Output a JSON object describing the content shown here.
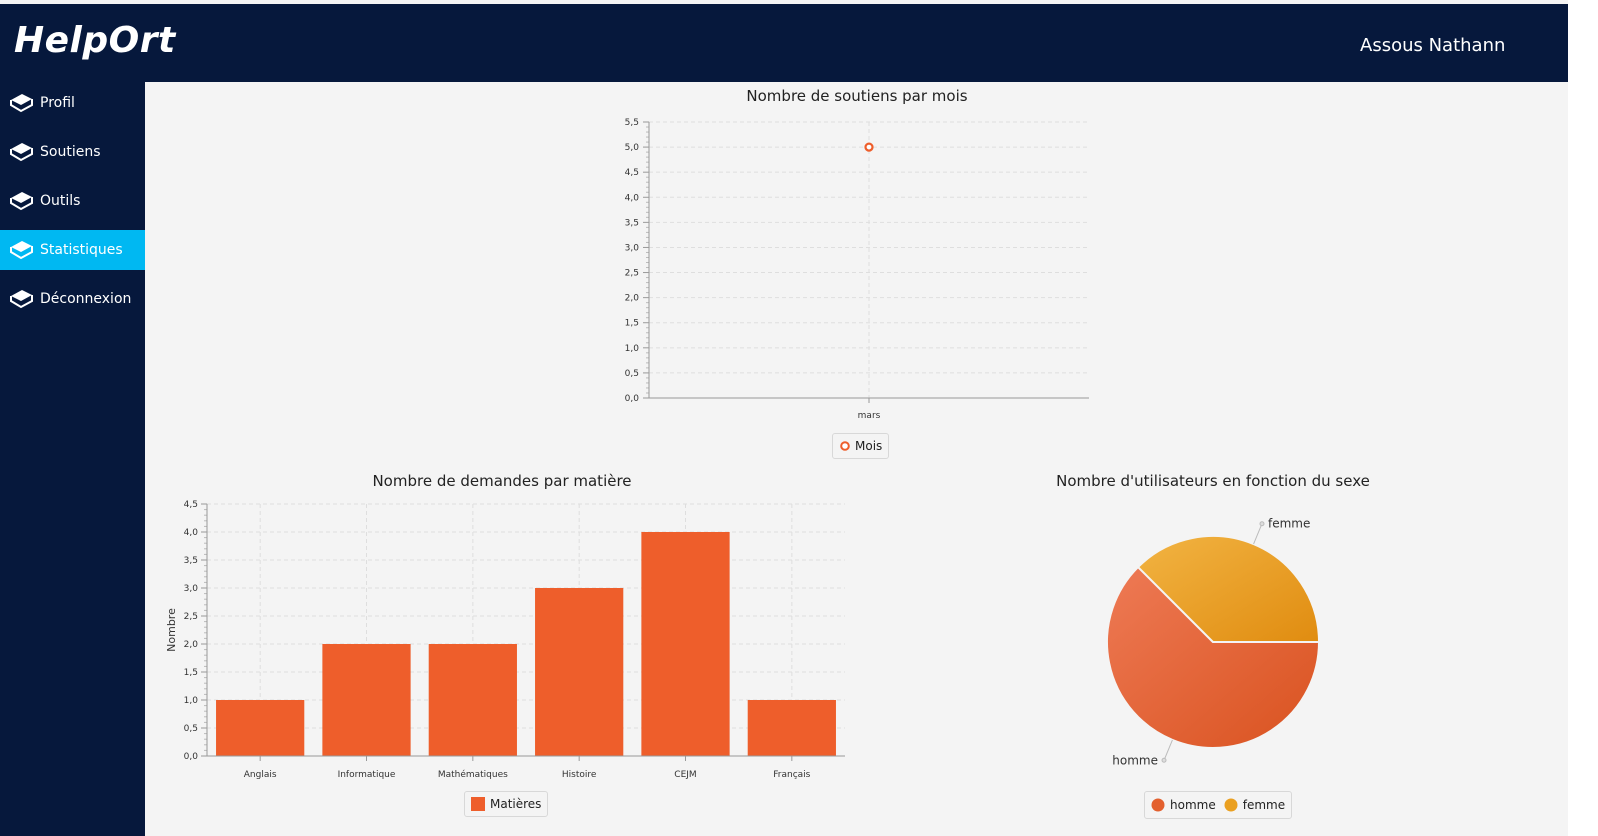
{
  "app": {
    "logo": "HelpOrt",
    "user": "Assous Nathann"
  },
  "sidebar": {
    "items": [
      {
        "label": "Profil",
        "active": false
      },
      {
        "label": "Soutiens",
        "active": false
      },
      {
        "label": "Outils",
        "active": false
      },
      {
        "label": "Statistiques",
        "active": true
      },
      {
        "label": "Déconnexion",
        "active": false
      }
    ]
  },
  "colors": {
    "header": "#06183c",
    "active": "#00b8f2",
    "bar": "#ee5e2b",
    "homme": "#e3602e",
    "femme": "#eaa021"
  },
  "chart_data": [
    {
      "type": "line",
      "title": "Nombre de soutiens par mois",
      "categories": [
        "mars"
      ],
      "series": [
        {
          "name": "Mois",
          "values": [
            5
          ]
        }
      ],
      "ylim": [
        0,
        5.5
      ],
      "yticks": [
        "0,0",
        "0,5",
        "1,0",
        "1,5",
        "2,0",
        "2,5",
        "3,0",
        "3,5",
        "4,0",
        "4,5",
        "5,0",
        "5,5"
      ],
      "grid": true,
      "legend": "bottom"
    },
    {
      "type": "bar",
      "title": "Nombre de demandes par matière",
      "categories": [
        "Anglais",
        "Informatique",
        "Mathématiques",
        "Histoire",
        "CEJM",
        "Français"
      ],
      "series": [
        {
          "name": "Matières",
          "values": [
            1,
            2,
            2,
            3,
            4,
            1
          ]
        }
      ],
      "ylabel": "Nombre",
      "ylim": [
        0,
        4.5
      ],
      "yticks": [
        "0,0",
        "0,5",
        "1,0",
        "1,5",
        "2,0",
        "2,5",
        "3,0",
        "3,5",
        "4,0",
        "4,5"
      ],
      "grid": true,
      "legend": "bottom"
    },
    {
      "type": "pie",
      "title": "Nombre d'utilisateurs en fonction du sexe",
      "labels": [
        "homme",
        "femme"
      ],
      "values": [
        62.5,
        37.5
      ],
      "legend": "bottom"
    }
  ]
}
